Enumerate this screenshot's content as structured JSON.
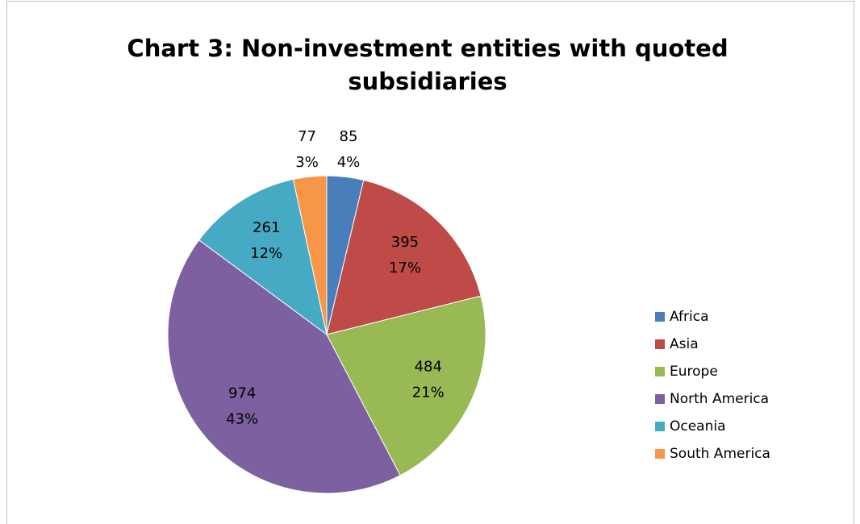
{
  "chart_data": {
    "type": "pie",
    "title": [
      "Chart 3: Non-investment entities with quoted",
      "subsidiaries"
    ],
    "categories": [
      "Africa",
      "Asia",
      "Europe",
      "North America",
      "Oceania",
      "South America"
    ],
    "values": [
      85,
      395,
      484,
      974,
      261,
      77
    ],
    "percentages": [
      {
        "value": 4,
        "label": "4%"
      },
      {
        "value": 17,
        "label": "17%"
      },
      {
        "value": 21,
        "label": "21%"
      },
      {
        "value": 43,
        "label": "43%"
      },
      {
        "value": 12,
        "label": "12%"
      },
      {
        "value": 3,
        "label": "3%"
      }
    ],
    "colors": [
      "#4a7ebb",
      "#be4b48",
      "#98b954",
      "#7d60a0",
      "#46aac5",
      "#f79646"
    ],
    "legend": "right"
  }
}
